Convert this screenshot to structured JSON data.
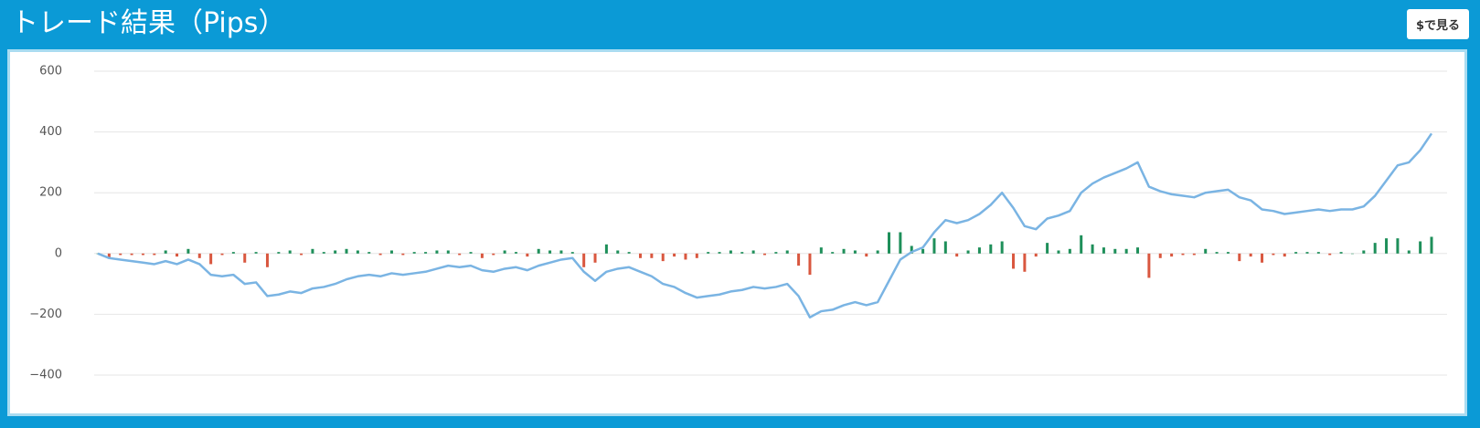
{
  "header": {
    "title": "トレード結果（Pips）",
    "button": "$で見る"
  },
  "chart_data": {
    "type": "line",
    "ylim": [
      -480,
      620
    ],
    "yticks": [
      {
        "value": -400,
        "label": "−400"
      },
      {
        "value": -200,
        "label": "−200"
      },
      0,
      200,
      400,
      600
    ],
    "grid": true,
    "series": [
      {
        "type": "line",
        "color": "#7ab4e3",
        "values": [
          0,
          -15,
          -20,
          -25,
          -30,
          -35,
          -25,
          -35,
          -20,
          -35,
          -70,
          -75,
          -70,
          -100,
          -95,
          -140,
          -135,
          -125,
          -130,
          -115,
          -110,
          -100,
          -85,
          -75,
          -70,
          -75,
          -65,
          -70,
          -65,
          -60,
          -50,
          -40,
          -45,
          -40,
          -55,
          -60,
          -50,
          -45,
          -55,
          -40,
          -30,
          -20,
          -15,
          -60,
          -90,
          -60,
          -50,
          -45,
          -60,
          -75,
          -100,
          -110,
          -130,
          -145,
          -140,
          -135,
          -125,
          -120,
          -110,
          -115,
          -110,
          -100,
          -140,
          -210,
          -190,
          -185,
          -170,
          -160,
          -170,
          -160,
          -90,
          -20,
          5,
          20,
          70,
          110,
          100,
          110,
          130,
          160,
          200,
          150,
          90,
          80,
          115,
          125,
          140,
          200,
          230,
          250,
          265,
          280,
          300,
          220,
          205,
          195,
          190,
          185,
          200,
          205,
          210,
          185,
          175,
          145,
          140,
          130,
          135,
          140,
          145,
          140,
          145,
          145,
          155,
          190,
          240,
          290,
          300,
          340,
          395
        ]
      },
      {
        "type": "bar",
        "positive_color": "#1e8f5a",
        "negative_color": "#d9573f",
        "values": [
          0,
          -15,
          -5,
          -5,
          -5,
          -5,
          10,
          -10,
          15,
          -15,
          -35,
          -5,
          5,
          -30,
          5,
          -45,
          5,
          10,
          -5,
          15,
          5,
          10,
          15,
          10,
          5,
          -5,
          10,
          -5,
          5,
          5,
          10,
          10,
          -5,
          5,
          -15,
          -5,
          10,
          5,
          -10,
          15,
          10,
          10,
          5,
          -45,
          -30,
          30,
          10,
          5,
          -15,
          -15,
          -25,
          -10,
          -20,
          -15,
          5,
          5,
          10,
          5,
          10,
          -5,
          5,
          10,
          -40,
          -70,
          20,
          5,
          15,
          10,
          -10,
          10,
          70,
          70,
          25,
          15,
          50,
          40,
          -10,
          10,
          20,
          30,
          40,
          -50,
          -60,
          -10,
          35,
          10,
          15,
          60,
          30,
          20,
          15,
          15,
          20,
          -80,
          -15,
          -10,
          -5,
          -5,
          15,
          5,
          5,
          -25,
          -10,
          -30,
          -5,
          -10,
          5,
          5,
          5,
          -5,
          5,
          0,
          10,
          35,
          50,
          50,
          10,
          40,
          55
        ]
      }
    ]
  }
}
